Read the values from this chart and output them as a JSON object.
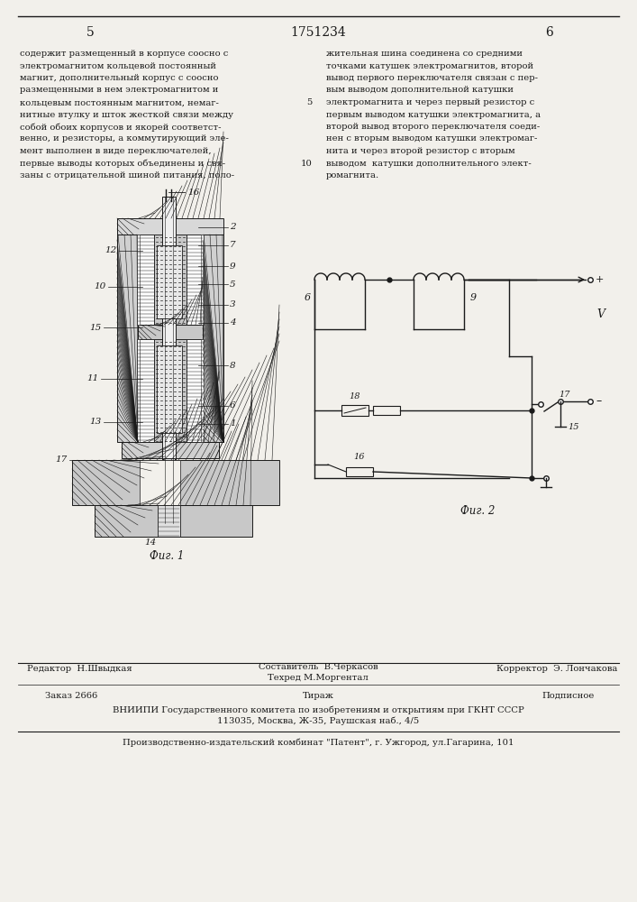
{
  "page_number_left": "5",
  "patent_number": "1751234",
  "page_number_right": "6",
  "left_column_text": [
    "содержит размещенный в корпусе соосно с",
    "электромагнитом кольцевой постоянный",
    "магнит, дополнительный корпус с соосно",
    "размещенными в нем электромагнитом и",
    "кольцевым постоянным магнитом, немаг-",
    "нитные втулку и шток жесткой связи между",
    "собой обоих корпусов и якорей соответст-",
    "венно, и резисторы, а коммутирующий эле-",
    "мент выполнен в виде переключателей,",
    "первые выводы которых объединены и свя-",
    "заны с отрицательной шиной питания, поло-"
  ],
  "right_column_text": [
    "жительная шина соединена со средними",
    "точками катушек электромагнитов, второй",
    "вывод первого переключателя связан с пер-",
    "вым выводом дополнительной катушки",
    "электромагнита и через первый резистор с",
    "первым выводом катушки электромагнита, а",
    "второй вывод второго переключателя соеди-",
    "нен с вторым выводом катушки электромаг-",
    "нита и через второй резистор с вторым",
    "выводом  катушки дополнительного элект-",
    "ромагнита."
  ],
  "fig1_label": "Фиг. 1",
  "fig2_label": "Фиг. 2",
  "footer_editor": "Редактор  Н.Швыдкая",
  "footer_composer": "Составитель  В.Черкасов",
  "footer_corrector": "Корректор  Э. Лончакова",
  "footer_techred": "Техред М.Моргентал",
  "footer_order": "Заказ 2666",
  "footer_tirazh": "Тираж",
  "footer_podpisnoe": "Подписное",
  "footer_vniipи": "ВНИИПИ Государственного комитета по изобретениям и открытиям при ГКНТ СССР",
  "footer_address": "113035, Москва, Ж-35, Раушская наб., 4/5",
  "footer_publisher": "Производственно-издательский комбинат \"Патент\", г. Ужгород, ул.Гагарина, 101",
  "bg_color": "#f2f0eb",
  "text_color": "#1a1a1a",
  "line_color": "#1a1a1a"
}
